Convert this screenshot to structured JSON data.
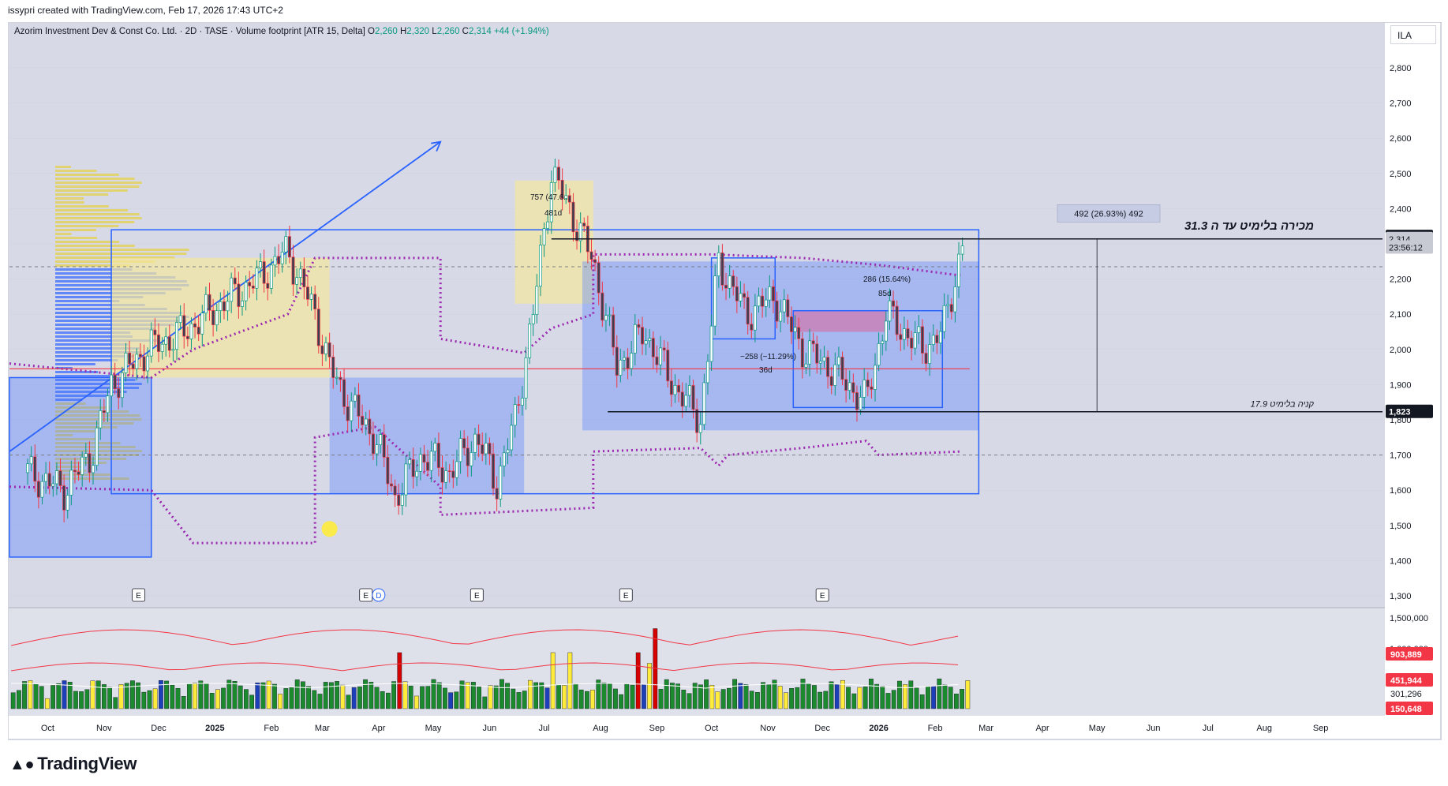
{
  "header": {
    "attribution": "issypri created with TradingView.com, Feb 17, 2026 17:43 UTC+2"
  },
  "legend": {
    "symbol": "Azorim Investment Dev & Const Co. Ltd. · 2D · TASE · Volume footprint [ATR 15, Delta]",
    "o_label": "O",
    "o": "2,260",
    "h_label": "H",
    "h": "2,320",
    "l_label": "L",
    "l": "2,260",
    "c_label": "C",
    "c": "2,314",
    "change": "+44 (+1.94%)"
  },
  "currency_button": "ILA",
  "brand": "TradingView",
  "colors": {
    "up": "#089981",
    "down": "#f23645",
    "blue_zone": "#2962ff",
    "yellow_zone": "#f5e79e",
    "purple": "#9c27b0",
    "red_line": "#f23645",
    "dark_label": "#131722",
    "vol_green": "#1b8a2e",
    "vol_yellow": "#ffeb3b"
  },
  "chart_data": {
    "type": "candlestick",
    "timeframe": "2D",
    "y_ticks": [
      "2,800",
      "2,700",
      "2,600",
      "2,500",
      "2,400",
      "2,300",
      "2,200",
      "2,100",
      "2,000",
      "1,900",
      "1,800",
      "1,700",
      "1,600",
      "1,500",
      "1,400",
      "1,300"
    ],
    "ylim": [
      1300,
      2800
    ],
    "x_ticks": [
      "Oct",
      "Nov",
      "Dec",
      "2025",
      "Feb",
      "Mar",
      "Apr",
      "May",
      "Jun",
      "Jul",
      "Aug",
      "Sep",
      "Oct",
      "Nov",
      "Dec",
      "2026",
      "Feb",
      "Mar",
      "Apr",
      "May",
      "Jun",
      "Jul",
      "Aug",
      "Sep"
    ],
    "price_labels": [
      {
        "text": "2,320",
        "value": 2320,
        "style": "dark"
      },
      {
        "text": "2,314",
        "value": 2314,
        "style": "grey"
      },
      {
        "text": "23:56:12",
        "value": 2290,
        "style": "grey"
      },
      {
        "text": "1,823",
        "value": 1823,
        "style": "dark"
      }
    ],
    "horizontal_lines": [
      {
        "value": 2314,
        "label": "מכירה בלימיט עד ה 31.3"
      },
      {
        "value": 1823,
        "label": "קניה בלימיט 17.9"
      }
    ],
    "measure_label": "492 (26.93%) 492",
    "annotations": [
      {
        "text": "757 (47.6...",
        "note": "yellow box range"
      },
      {
        "text": "481d"
      },
      {
        "text": "−258 (−11.29%)"
      },
      {
        "text": "36d"
      },
      {
        "text": "286 (15.64%)"
      },
      {
        "text": "85d"
      }
    ],
    "earnings_markers": [
      "E",
      "E",
      "E",
      "E",
      "E"
    ],
    "dividend_marker": "D",
    "price_path": [
      [
        "2024-09-20",
        1650
      ],
      [
        "2024-10-10",
        1600
      ],
      [
        "2024-10-25",
        1700
      ],
      [
        "2024-11-05",
        1900
      ],
      [
        "2024-11-25",
        2000
      ],
      [
        "2024-12-15",
        2050
      ],
      [
        "2025-01-10",
        2150
      ],
      [
        "2025-01-25",
        2200
      ],
      [
        "2025-02-10",
        2280
      ],
      [
        "2025-02-25",
        2100
      ],
      [
        "2025-03-05",
        1950
      ],
      [
        "2025-03-15",
        1850
      ],
      [
        "2025-03-30",
        1750
      ],
      [
        "2025-04-10",
        1580
      ],
      [
        "2025-04-25",
        1700
      ],
      [
        "2025-05-10",
        1650
      ],
      [
        "2025-05-25",
        1750
      ],
      [
        "2025-06-05",
        1620
      ],
      [
        "2025-06-15",
        1800
      ],
      [
        "2025-06-25",
        2100
      ],
      [
        "2025-07-05",
        2500
      ],
      [
        "2025-07-15",
        2400
      ],
      [
        "2025-07-28",
        2250
      ],
      [
        "2025-08-10",
        1950
      ],
      [
        "2025-08-25",
        2050
      ],
      [
        "2025-09-10",
        1900
      ],
      [
        "2025-09-25",
        1800
      ],
      [
        "2025-10-05",
        2250
      ],
      [
        "2025-10-20",
        2100
      ],
      [
        "2025-11-05",
        2150
      ],
      [
        "2025-11-20",
        2000
      ],
      [
        "2025-12-05",
        1950
      ],
      [
        "2025-12-25",
        1850
      ],
      [
        "2026-01-05",
        2100
      ],
      [
        "2026-01-25",
        2000
      ],
      [
        "2026-02-05",
        2050
      ],
      [
        "2026-02-17",
        2314
      ]
    ],
    "volume": {
      "axis_labels": [
        "1,500,000",
        "1,000,000"
      ],
      "value_labels": [
        {
          "text": "903,889",
          "style": "red"
        },
        {
          "text": "451,944",
          "style": "red"
        },
        {
          "text": "301,296",
          "style": "white"
        },
        {
          "text": "150,648",
          "style": "red"
        }
      ]
    }
  }
}
